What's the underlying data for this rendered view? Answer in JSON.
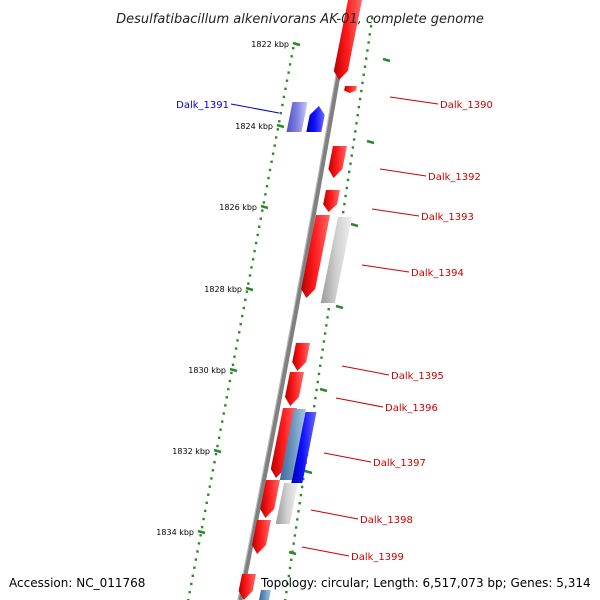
{
  "title": "Desulfatibacillum alkenivorans AK-01, complete genome",
  "accession": "Accession: NC_011768",
  "topology": "Topology: circular; Length: 6,517,073 bp; Genes: 5,314",
  "scale_ticks": [
    "1822 kbp",
    "1824 kbp",
    "1826 kbp",
    "1828 kbp",
    "1830 kbp",
    "1832 kbp",
    "1834 kbp"
  ],
  "genes": [
    {
      "label": "Dalk_1390",
      "strand": "reverse",
      "color": "#ff0000"
    },
    {
      "label": "Dalk_1391",
      "strand": "forward",
      "color": "#0000ff"
    },
    {
      "label": "Dalk_1392",
      "strand": "reverse",
      "color": "#ff0000"
    },
    {
      "label": "Dalk_1393",
      "strand": "reverse",
      "color": "#ff0000"
    },
    {
      "label": "Dalk_1394",
      "strand": "reverse",
      "color": "#ff0000"
    },
    {
      "label": "Dalk_1395",
      "strand": "reverse",
      "color": "#ff0000"
    },
    {
      "label": "Dalk_1396",
      "strand": "reverse",
      "color": "#ff0000"
    },
    {
      "label": "Dalk_1397",
      "strand": "reverse",
      "color": "#ff0000"
    },
    {
      "label": "Dalk_1398",
      "strand": "reverse",
      "color": "#ff0000"
    },
    {
      "label": "Dalk_1399",
      "strand": "reverse",
      "color": "#ff0000"
    }
  ],
  "colors": {
    "cds_reverse": "#ff0000",
    "cds_forward": "#0000ff",
    "gray_track": "#b8b8b8",
    "forward_light": "#7070dd",
    "steel": "#5a86b0",
    "backbone": "#808080",
    "dots": "#2a8a2a",
    "forward_label": "#0000cc",
    "reverse_label": "#cc0000"
  }
}
